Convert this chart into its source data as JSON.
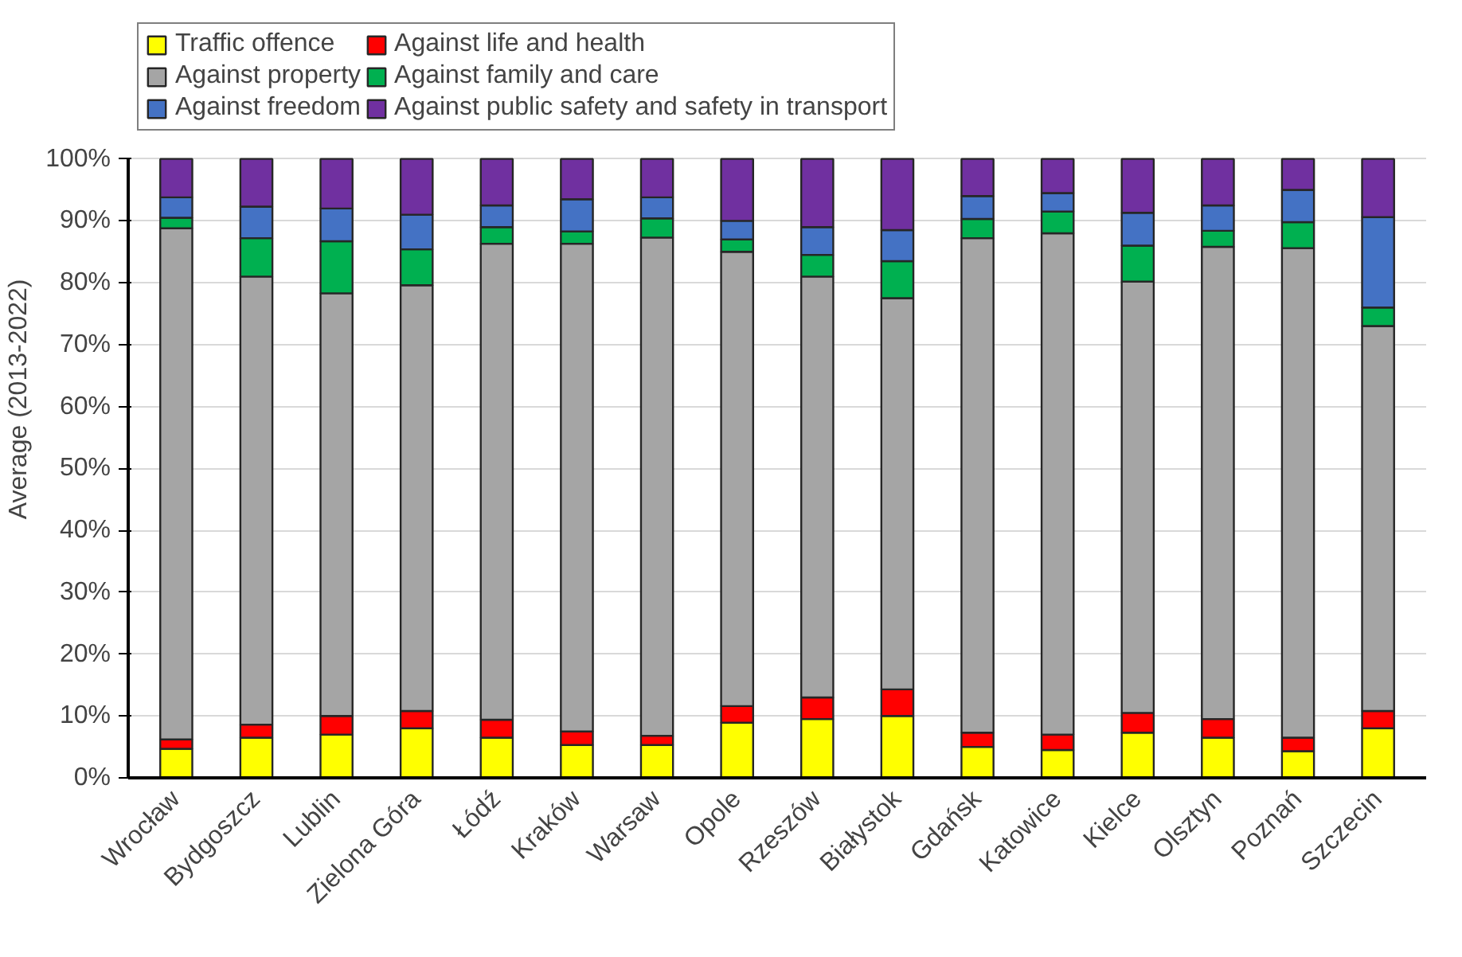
{
  "chart_data": {
    "type": "bar",
    "stacked": true,
    "ylabel": "Average  (2013-2022)",
    "categories": [
      "Wrocław",
      "Bydgoszcz",
      "Lublin",
      "Zielona Góra",
      "Łódź",
      "Kraków",
      "Warsaw",
      "Opole",
      "Rzeszów",
      "Białystok",
      "Gdańsk",
      "Katowice",
      "Kielce",
      "Olsztyn",
      "Poznań",
      "Szczecin"
    ],
    "series": [
      {
        "name": "Traffic offence",
        "color": "#ffff00",
        "values": [
          4.7,
          6.5,
          7.0,
          8.0,
          6.5,
          5.3,
          5.3,
          8.9,
          9.5,
          10.0,
          5.0,
          4.5,
          7.3,
          6.5,
          4.3,
          8.0
        ]
      },
      {
        "name": "Against life and health",
        "color": "#ff0000",
        "values": [
          1.5,
          2.1,
          3.0,
          2.8,
          2.9,
          2.2,
          1.5,
          2.7,
          3.5,
          4.3,
          2.3,
          2.5,
          3.2,
          3.0,
          2.2,
          2.8
        ]
      },
      {
        "name": "Against property",
        "color": "#a5a5a5",
        "values": [
          82.6,
          72.4,
          68.3,
          68.8,
          76.9,
          78.8,
          80.5,
          73.4,
          68.0,
          63.2,
          79.9,
          81.0,
          69.7,
          76.3,
          79.1,
          62.2
        ]
      },
      {
        "name": "Against family and care",
        "color": "#00b050",
        "values": [
          1.7,
          6.2,
          8.4,
          5.8,
          2.7,
          2.0,
          3.1,
          2.0,
          3.5,
          6.0,
          3.1,
          3.5,
          5.8,
          2.6,
          4.2,
          3.0
        ]
      },
      {
        "name": "Against freedom",
        "color": "#4472c4",
        "values": [
          3.3,
          5.1,
          5.3,
          5.6,
          3.5,
          5.2,
          3.4,
          3.0,
          4.5,
          5.0,
          3.7,
          3.0,
          5.3,
          4.1,
          5.2,
          14.6
        ]
      },
      {
        "name": "Against public safety and safety in transport",
        "color": "#7030a0",
        "values": [
          6.2,
          7.7,
          8.0,
          9.0,
          7.5,
          6.5,
          6.2,
          10.0,
          11.0,
          11.5,
          6.0,
          5.5,
          8.7,
          7.5,
          5.0,
          9.4
        ]
      }
    ],
    "ylim": [
      0,
      100
    ],
    "yticks": [
      {
        "value": 0,
        "label": "0%"
      },
      {
        "value": 10,
        "label": "10%"
      },
      {
        "value": 20,
        "label": "20%"
      },
      {
        "value": 30,
        "label": "30%"
      },
      {
        "value": 40,
        "label": "40%"
      },
      {
        "value": 50,
        "label": "50%"
      },
      {
        "value": 60,
        "label": "60%"
      },
      {
        "value": 70,
        "label": "70%"
      },
      {
        "value": 80,
        "label": "80%"
      },
      {
        "value": 90,
        "label": "90%"
      },
      {
        "value": 100,
        "label": "100%"
      }
    ],
    "grid": "y",
    "legend": "top"
  }
}
